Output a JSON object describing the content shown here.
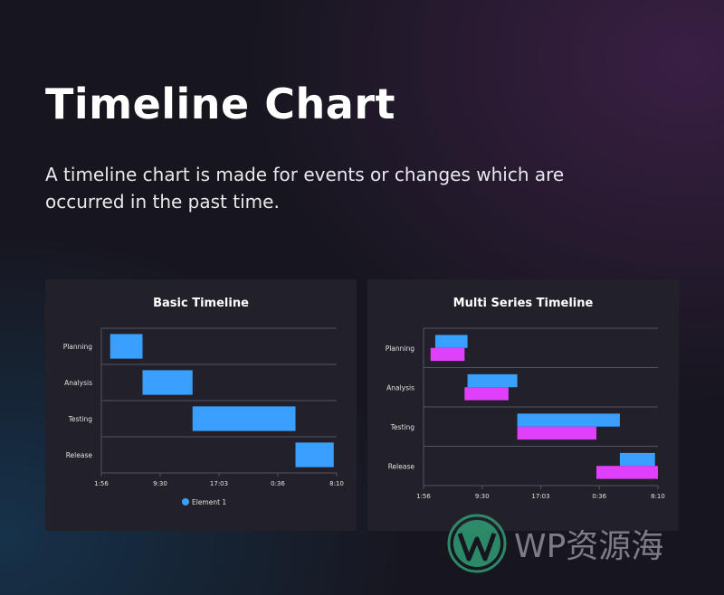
{
  "heading": "Timeline Chart",
  "description": "A timeline chart is made for events or changes which are occurred in the past time.",
  "colors": {
    "series1": "#3aa0ff",
    "series2": "#e040fb"
  },
  "chart_data": [
    {
      "type": "timeline",
      "title": "Basic Timeline",
      "categories": [
        "Planning",
        "Analysis",
        "Testing",
        "Release"
      ],
      "x_ticks": [
        "1:56",
        "9:30",
        "17:03",
        "0:36",
        "8:10"
      ],
      "x_range": [
        0,
        4
      ],
      "series": [
        {
          "name": "Element 1",
          "color": "#3aa0ff",
          "ranges": [
            [
              0.15,
              0.7
            ],
            [
              0.7,
              1.55
            ],
            [
              1.55,
              3.3
            ],
            [
              3.3,
              3.95
            ]
          ]
        }
      ],
      "legend": "bottom-center",
      "grid": true
    },
    {
      "type": "timeline",
      "title": "Multi Series Timeline",
      "categories": [
        "Planning",
        "Analysis",
        "Testing",
        "Release"
      ],
      "x_ticks": [
        "1:56",
        "9:30",
        "17:03",
        "0:36",
        "8:10"
      ],
      "x_range": [
        0,
        4
      ],
      "series": [
        {
          "color": "#3aa0ff",
          "ranges": [
            [
              0.2,
              0.75
            ],
            [
              0.75,
              1.6
            ],
            [
              1.6,
              3.35
            ],
            [
              3.35,
              3.95
            ]
          ]
        },
        {
          "color": "#e040fb",
          "ranges": [
            [
              0.12,
              0.7
            ],
            [
              0.7,
              1.45
            ],
            [
              1.6,
              2.95
            ],
            [
              2.95,
              4.0
            ]
          ]
        }
      ],
      "legend": "none",
      "grid": true
    }
  ],
  "watermark": {
    "text": "WP资源海"
  }
}
